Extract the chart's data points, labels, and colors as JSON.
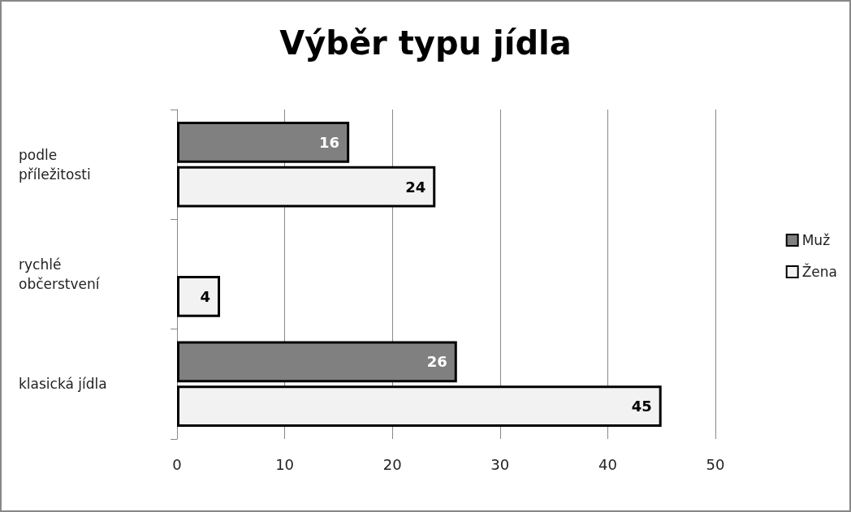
{
  "chart_data": {
    "type": "bar",
    "orientation": "horizontal",
    "title": "Výběr typu jídla",
    "categories": [
      "podle příležitosti",
      "rychlé občerstvení",
      "klasická jídla"
    ],
    "series": [
      {
        "name": "Muž",
        "color": "#808080",
        "values": [
          16,
          null,
          26
        ]
      },
      {
        "name": "Žena",
        "color": "#f2f2f2",
        "values": [
          24,
          4,
          45
        ]
      }
    ],
    "xlim": [
      0,
      50
    ],
    "xticks": [
      0,
      10,
      20,
      30,
      40,
      50
    ],
    "grid": "x",
    "legend": "right",
    "data_labels": true
  }
}
